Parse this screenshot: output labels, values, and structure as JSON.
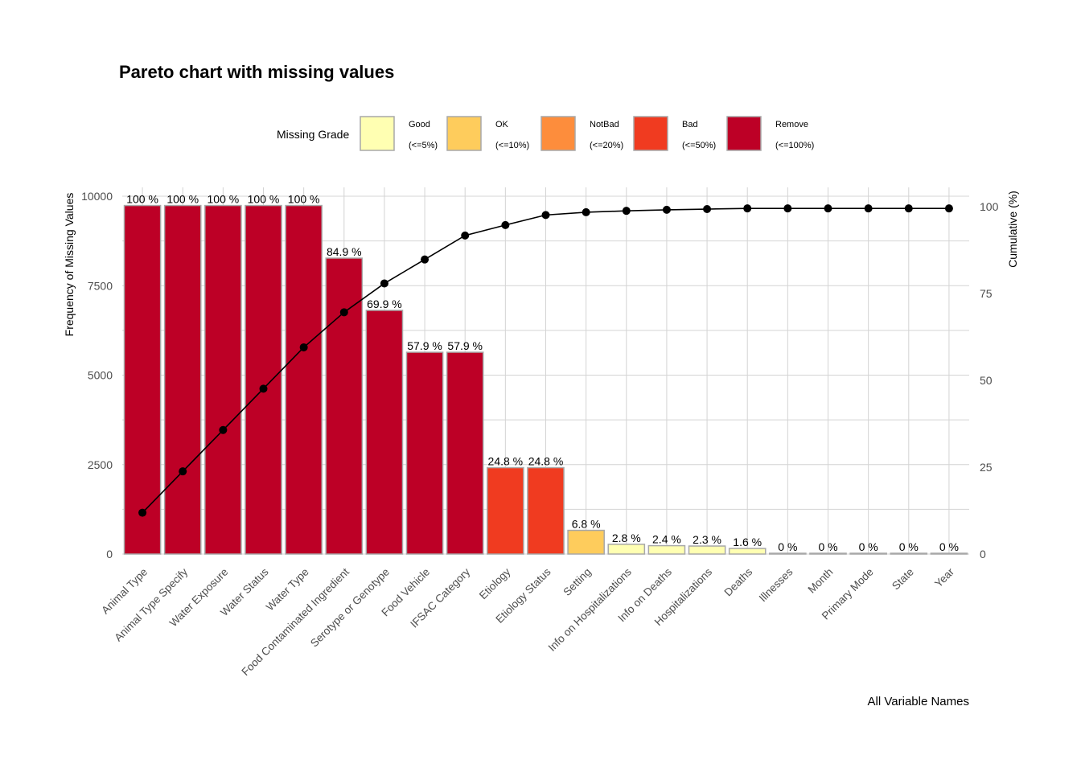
{
  "chart_data": {
    "type": "bar",
    "title": "Pareto chart with missing values",
    "xlabel": "All Variable Names",
    "ylabel": "Frequency of Missing Values",
    "y2label": "Cumulative (%)",
    "ylim": [
      0,
      10000
    ],
    "y2lim": [
      0,
      100
    ],
    "yticks": [
      0,
      2500,
      5000,
      7500,
      10000
    ],
    "y2ticks": [
      0,
      25,
      50,
      75,
      100
    ],
    "grid": true,
    "legend_position": "top",
    "legend": {
      "title": "Missing Grade",
      "items": [
        {
          "name": "Good",
          "range": "(<=5%)",
          "color": "#FFFFB2"
        },
        {
          "name": "OK",
          "range": "(<=10%)",
          "color": "#FECC5C"
        },
        {
          "name": "NotBad",
          "range": "(<=20%)",
          "color": "#FD8D3C"
        },
        {
          "name": "Bad",
          "range": "(<=50%)",
          "color": "#F03B20"
        },
        {
          "name": "Remove",
          "range": "(<=100%)",
          "color": "#BD0026"
        }
      ]
    },
    "categories": [
      "Animal Type",
      "Animal Type Specify",
      "Water Exposure",
      "Water Status",
      "Water Type",
      "Food Contaminated Ingredient",
      "Serotype or Genotype",
      "Food Vehicle",
      "IFSAC Category",
      "Etiology",
      "Etiology Status",
      "Setting",
      "Info on Hospitalizations",
      "Info on Deaths",
      "Hospitalizations",
      "Deaths",
      "Illnesses",
      "Month",
      "Primary Mode",
      "State",
      "Year"
    ],
    "values": [
      9740,
      9740,
      9740,
      9740,
      9740,
      8270,
      6810,
      5640,
      5640,
      2415,
      2415,
      662,
      273,
      234,
      224,
      156,
      0,
      0,
      0,
      0,
      0
    ],
    "percent_labels": [
      "100 %",
      "100 %",
      "100 %",
      "100 %",
      "100 %",
      "84.9 %",
      "69.9 %",
      "57.9 %",
      "57.9 %",
      "24.8 %",
      "24.8 %",
      "6.8 %",
      "2.8 %",
      "2.4 %",
      "2.3 %",
      "1.6 %",
      "0 %",
      "0 %",
      "0 %",
      "0 %",
      "0 %"
    ],
    "grades": [
      "Remove",
      "Remove",
      "Remove",
      "Remove",
      "Remove",
      "Remove",
      "Remove",
      "Remove",
      "Remove",
      "Bad",
      "Bad",
      "OK",
      "Good",
      "Good",
      "Good",
      "Good",
      "Good",
      "Good",
      "Good",
      "Good",
      "Good"
    ],
    "cumulative_percent": [
      11.9,
      23.8,
      35.7,
      47.6,
      59.5,
      69.6,
      77.9,
      84.8,
      91.7,
      94.7,
      97.6,
      98.4,
      98.8,
      99.1,
      99.3,
      99.5,
      99.5,
      99.5,
      99.5,
      99.5,
      99.5
    ],
    "colors": {
      "line": "#000000",
      "grid": "#d4d4d4",
      "bar_outline": "#a8a8a8",
      "text": "#000000",
      "axis_text": "#4d4d4d"
    }
  }
}
